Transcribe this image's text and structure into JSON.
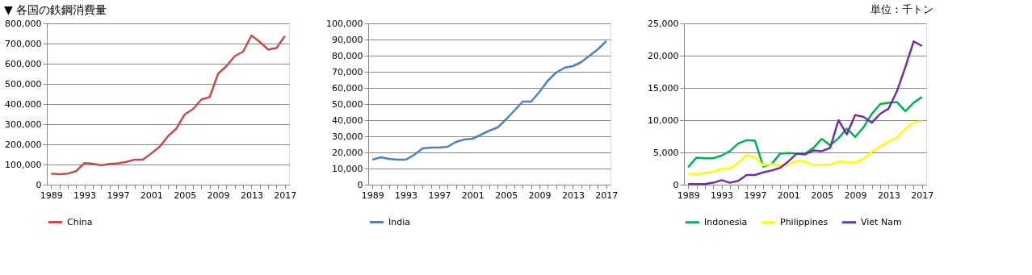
{
  "chart_data": [
    {
      "type": "line",
      "title": "▼ 各国の鉄鋼消費量",
      "categories": [
        "1989",
        null,
        null,
        null,
        "1993",
        null,
        null,
        null,
        "1997",
        null,
        null,
        null,
        "2001",
        null,
        null,
        null,
        "2005",
        null,
        null,
        null,
        "2009",
        null,
        null,
        null,
        "2013",
        null,
        null,
        null,
        "2017"
      ],
      "series": [
        {
          "name": "China",
          "color": "#c0504d",
          "values": [
            55000,
            52000,
            55000,
            67000,
            107000,
            104000,
            96000,
            103000,
            106000,
            113000,
            124000,
            124000,
            155000,
            188000,
            240000,
            278000,
            348000,
            375000,
            422000,
            435000,
            550000,
            588000,
            638000,
            660000,
            740000,
            708000,
            670000,
            678000,
            738000
          ]
        }
      ],
      "ylim": [
        0,
        800000
      ],
      "yticks": [
        0,
        {
          "value": 100000,
          "label": "100,000"
        },
        {
          "value": 200000,
          "label": "200,000"
        },
        {
          "value": 300000,
          "label": "300,000"
        },
        {
          "value": 400000,
          "label": "400,000"
        },
        {
          "value": 500000,
          "label": "500,000"
        },
        {
          "value": 600000,
          "label": "600,000"
        },
        {
          "value": 700000,
          "label": "700,000"
        },
        {
          "value": 800000,
          "label": "800,000"
        }
      ],
      "grid": "y",
      "legend": "bottom",
      "marker": "none"
    },
    {
      "type": "line",
      "categories": [
        "1989",
        null,
        null,
        null,
        "1993",
        null,
        null,
        null,
        "1997",
        null,
        null,
        null,
        "2001",
        null,
        null,
        null,
        "2005",
        null,
        null,
        null,
        "2009",
        null,
        null,
        null,
        "2013",
        null,
        null,
        null,
        "2017"
      ],
      "series": [
        {
          "name": "India",
          "color": "#4f81bd",
          "values": [
            15500,
            17000,
            16000,
            15500,
            15500,
            18500,
            22500,
            23000,
            23000,
            23500,
            26500,
            28000,
            28500,
            31000,
            33500,
            35500,
            40500,
            46000,
            51500,
            51500,
            57500,
            64500,
            69500,
            72500,
            73500,
            76000,
            80000,
            84000,
            89000
          ]
        }
      ],
      "ylim": [
        0,
        100000
      ],
      "yticks": [
        0,
        {
          "value": 10000,
          "label": "10,000"
        },
        {
          "value": 20000,
          "label": "20,000"
        },
        {
          "value": 30000,
          "label": "30,000"
        },
        {
          "value": 40000,
          "label": "40,000"
        },
        {
          "value": 50000,
          "label": "50,000"
        },
        {
          "value": 60000,
          "label": "60,000"
        },
        {
          "value": 70000,
          "label": "70,000"
        },
        {
          "value": 80000,
          "label": "80,000"
        },
        {
          "value": 90000,
          "label": "90,000"
        },
        {
          "value": 100000,
          "label": "100,000"
        }
      ],
      "grid": "y",
      "legend": "bottom",
      "marker": "none"
    },
    {
      "type": "line",
      "annotations": [
        "単位：千トン"
      ],
      "categories": [
        "1989",
        null,
        null,
        null,
        "1993",
        null,
        null,
        null,
        "1997",
        null,
        null,
        null,
        "2001",
        null,
        null,
        null,
        "2005",
        null,
        null,
        null,
        "2009",
        null,
        null,
        null,
        "2013",
        null,
        null,
        null,
        "2017"
      ],
      "series": [
        {
          "name": "Indonesia",
          "color": "#00b050",
          "values": [
            2700,
            4200,
            4100,
            4100,
            4500,
            5200,
            6400,
            6900,
            6800,
            2800,
            3200,
            4800,
            4900,
            4800,
            4800,
            5700,
            7100,
            6100,
            7200,
            8700,
            7400,
            8900,
            11000,
            12500,
            12700,
            12800,
            11400,
            12700,
            13600
          ]
        },
        {
          "name": "Philippines",
          "color": "#ffff00",
          "values": [
            1700,
            1600,
            1800,
            2000,
            2500,
            2500,
            3400,
            4600,
            4200,
            3000,
            3200,
            2900,
            3100,
            3700,
            3600,
            3000,
            3100,
            3100,
            3600,
            3500,
            3400,
            4000,
            5100,
            5900,
            6700,
            7300,
            8700,
            9700,
            9800
          ]
        },
        {
          "name": "Viet Nam",
          "color": "#7030a0",
          "values": [
            100,
            100,
            100,
            300,
            700,
            300,
            600,
            1500,
            1500,
            1900,
            2200,
            2600,
            3600,
            4800,
            4700,
            5300,
            5200,
            5700,
            10000,
            7800,
            10800,
            10500,
            9600,
            11000,
            11800,
            14500,
            18200,
            22200,
            21500
          ]
        }
      ],
      "ylim": [
        0,
        25000
      ],
      "yticks": [
        0,
        {
          "value": 5000,
          "label": "5,000"
        },
        {
          "value": 10000,
          "label": "10,000"
        },
        {
          "value": 15000,
          "label": "15,000"
        },
        {
          "value": 20000,
          "label": "20,000"
        },
        {
          "value": 25000,
          "label": "25,000"
        }
      ],
      "grid": "y",
      "legend": "bottom",
      "marker": "none"
    }
  ]
}
